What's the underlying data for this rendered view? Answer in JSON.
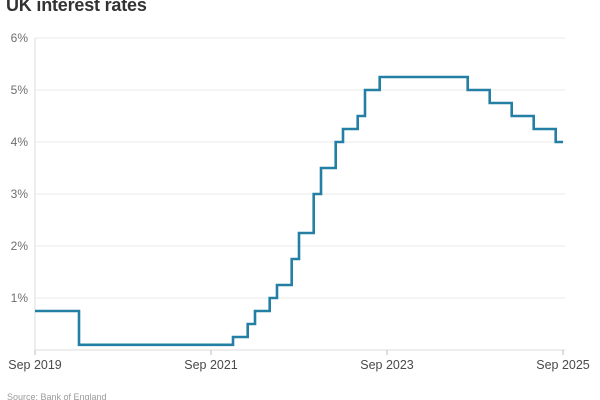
{
  "page": {
    "title": "UK interest rates"
  },
  "footer": {
    "source": "Source: Bank of England"
  },
  "chart_data": {
    "type": "line",
    "line_style": "step-after",
    "title": "UK interest rates",
    "xlabel": "",
    "ylabel": "",
    "unit": "%",
    "legend": "none",
    "grid": "horizontal",
    "line_color": "#2380a4",
    "x_axis": {
      "start": "Sep 2019",
      "end": "Sep 2025",
      "range_months": 72,
      "tick_labels": [
        "Sep 2019",
        "Sep 2021",
        "Sep 2023",
        "Sep 2025"
      ],
      "tick_months": [
        0,
        24,
        48,
        72
      ]
    },
    "y_axis": {
      "min": 0,
      "max": 6,
      "tick_values_top_to_bottom": [
        6,
        5,
        4,
        3,
        2,
        1
      ],
      "tick_labels_top_to_bottom": [
        "6%",
        "5%",
        "4%",
        "3%",
        "2%",
        "1%"
      ]
    },
    "series": [
      {
        "name": "UK interest rate",
        "end_month": 72,
        "steps": [
          {
            "month": 0,
            "date": "Sep 2019",
            "rate": 0.75
          },
          {
            "month": 6,
            "date": "Mar 2020",
            "rate": 0.1
          },
          {
            "month": 27,
            "date": "Dec 2021",
            "rate": 0.25
          },
          {
            "month": 29,
            "date": "Feb 2022",
            "rate": 0.5
          },
          {
            "month": 30,
            "date": "Mar 2022",
            "rate": 0.75
          },
          {
            "month": 32,
            "date": "May 2022",
            "rate": 1.0
          },
          {
            "month": 33,
            "date": "Jun 2022",
            "rate": 1.25
          },
          {
            "month": 35,
            "date": "Aug 2022",
            "rate": 1.75
          },
          {
            "month": 36,
            "date": "Sep 2022",
            "rate": 2.25
          },
          {
            "month": 38,
            "date": "Nov 2022",
            "rate": 3.0
          },
          {
            "month": 39,
            "date": "Dec 2022",
            "rate": 3.5
          },
          {
            "month": 41,
            "date": "Feb 2023",
            "rate": 4.0
          },
          {
            "month": 42,
            "date": "Mar 2023",
            "rate": 4.25
          },
          {
            "month": 44,
            "date": "May 2023",
            "rate": 4.5
          },
          {
            "month": 45,
            "date": "Jun 2023",
            "rate": 5.0
          },
          {
            "month": 47,
            "date": "Aug 2023",
            "rate": 5.25
          },
          {
            "month": 59,
            "date": "Aug 2024",
            "rate": 5.0
          },
          {
            "month": 62,
            "date": "Nov 2024",
            "rate": 4.75
          },
          {
            "month": 65,
            "date": "Feb 2025",
            "rate": 4.5
          },
          {
            "month": 68,
            "date": "May 2025",
            "rate": 4.25
          },
          {
            "month": 71,
            "date": "Aug 2025",
            "rate": 4.0
          }
        ]
      }
    ]
  }
}
